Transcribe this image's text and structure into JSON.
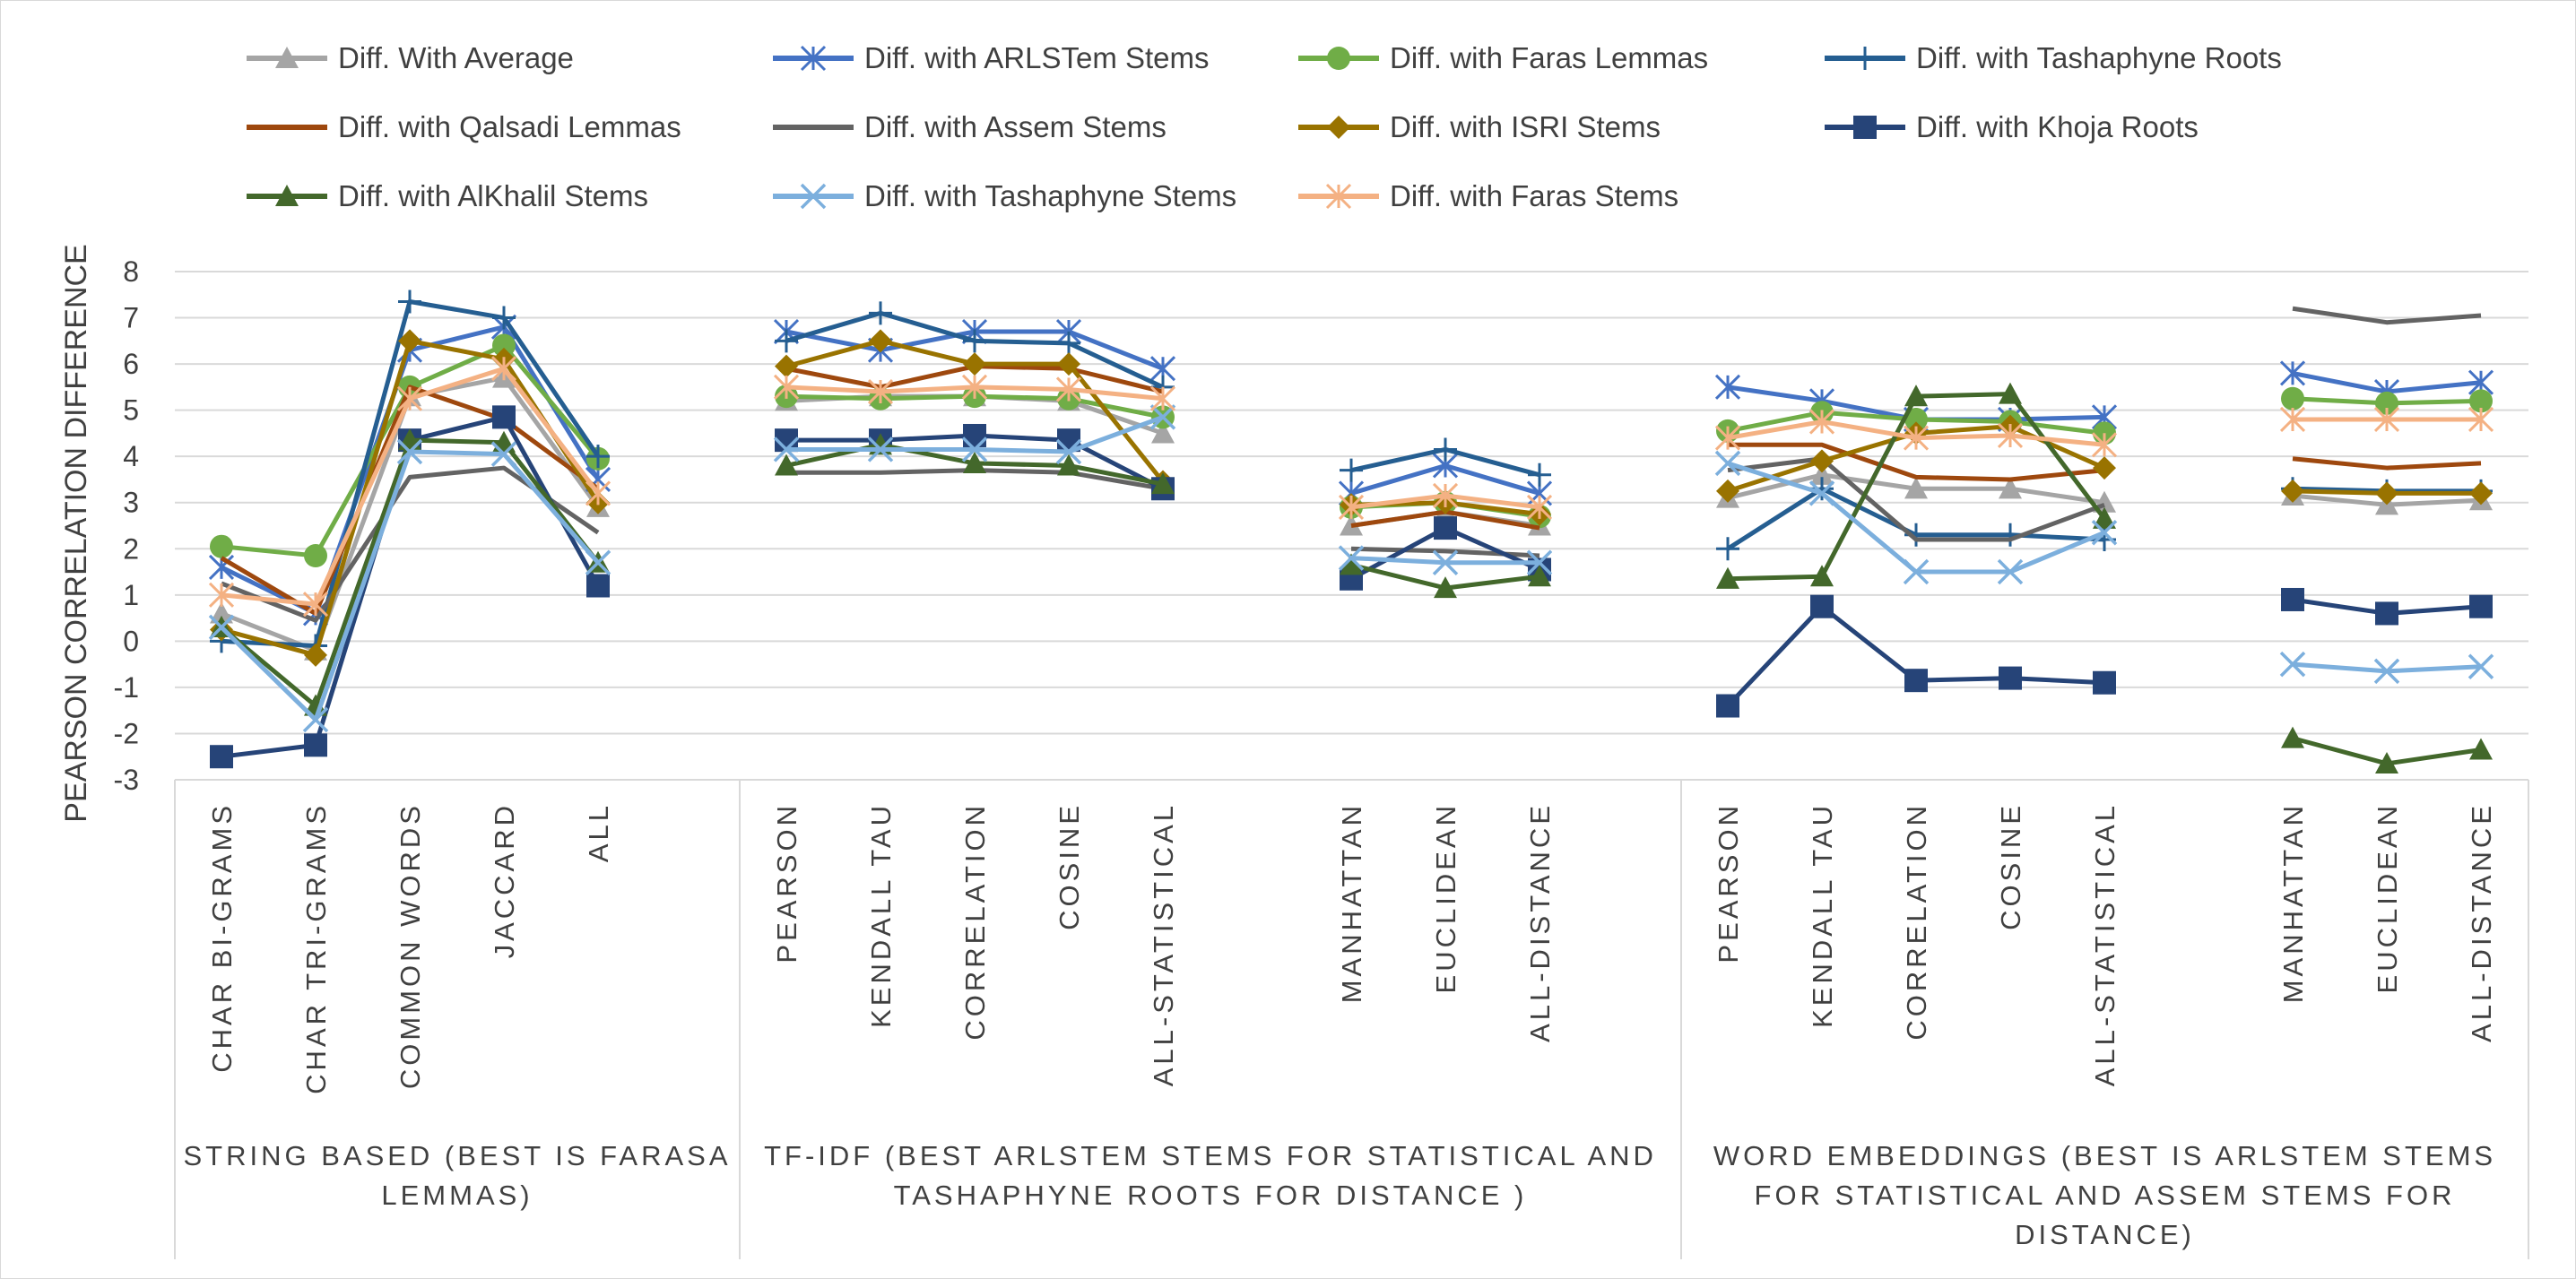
{
  "chart_data": {
    "type": "line",
    "ylabel": "PEARSON CORRELATION DIFFERENCE",
    "ylim": [
      -3,
      8
    ],
    "yticks": [
      "8",
      "7",
      "6",
      "5",
      "4",
      "3",
      "2",
      "1",
      "0",
      "-1",
      "-2",
      "-3"
    ],
    "grid": true,
    "legend": "top",
    "categories": [
      "CHAR BI-GRAMS",
      "CHAR TRI-GRAMS",
      "COMMON WORDS",
      "JACCARD",
      "ALL",
      "PEARSON",
      "KENDALL TAU",
      "CORRELATION",
      "COSINE",
      "ALL-STATISTICAL",
      "MANHATTAN",
      "EUCLIDEAN",
      "ALL-DISTANCE",
      "PEARSON",
      "KENDALL TAU",
      "CORRELATION",
      "COSINE",
      "ALL-STATISTICAL",
      "MANHATTAN",
      "EUCLIDEAN",
      "ALL-DISTANCE"
    ],
    "groups": [
      {
        "label_lines": [
          "STRING BASED (BEST IS FARASA",
          "LEMMAS)"
        ],
        "count": 5
      },
      {
        "label_lines": [
          "TF-IDF (BEST ARLSTEM STEMS FOR STATISTICAL AND",
          "TASHAPHYNE ROOTS FOR DISTANCE )"
        ],
        "count": 8
      },
      {
        "label_lines": [
          "WORD EMBEDDINGS (BEST IS ARLSTEM STEMS",
          "FOR STATISTICAL AND ASSEM STEMS FOR",
          "DISTANCE)"
        ],
        "count": 8
      }
    ],
    "segments": [
      [
        0,
        4
      ],
      [
        5,
        9
      ],
      [
        10,
        12
      ],
      [
        13,
        17
      ],
      [
        18,
        20
      ]
    ],
    "series": [
      {
        "name": "Diff. With Average",
        "color": "#a5a5a5",
        "marker": "triangle",
        "values": [
          0.6,
          -0.2,
          5.3,
          5.7,
          2.9,
          5.2,
          5.3,
          5.3,
          5.2,
          4.5,
          2.5,
          2.8,
          2.5,
          3.1,
          3.6,
          3.3,
          3.3,
          3.0,
          3.15,
          2.95,
          3.05
        ]
      },
      {
        "name": "Diff. with ARLSTem Stems",
        "color": "#4472c4",
        "marker": "star",
        "values": [
          1.6,
          0.6,
          6.3,
          6.8,
          3.5,
          6.7,
          6.3,
          6.7,
          6.7,
          5.9,
          3.2,
          3.8,
          3.2,
          5.5,
          5.2,
          4.8,
          4.8,
          4.85,
          5.8,
          5.4,
          5.6
        ]
      },
      {
        "name": "Diff. with Faras Lemmas",
        "color": "#70ad47",
        "marker": "circle",
        "values": [
          2.05,
          1.85,
          5.5,
          6.4,
          3.95,
          5.3,
          5.25,
          5.3,
          5.25,
          4.85,
          2.9,
          3.0,
          2.7,
          4.55,
          4.95,
          4.8,
          4.75,
          4.5,
          5.25,
          5.15,
          5.2
        ]
      },
      {
        "name": "Diff. with Tashaphyne Roots",
        "color": "#255e91",
        "marker": "plus",
        "values": [
          0.0,
          -0.1,
          7.35,
          7.0,
          4.0,
          6.5,
          7.1,
          6.5,
          6.45,
          5.5,
          3.7,
          4.15,
          3.6,
          2.0,
          3.3,
          2.3,
          2.3,
          2.2,
          3.3,
          3.25,
          3.25
        ]
      },
      {
        "name": "Diff. with Qalsadi Lemmas",
        "color": "#9e480e",
        "marker": "none",
        "values": [
          1.8,
          0.6,
          5.5,
          4.8,
          3.3,
          5.9,
          5.5,
          5.95,
          5.9,
          5.4,
          2.5,
          2.8,
          2.45,
          4.25,
          4.25,
          3.55,
          3.5,
          3.7,
          3.95,
          3.75,
          3.85
        ]
      },
      {
        "name": "Diff. with Assem Stems",
        "color": "#636363",
        "marker": "none",
        "values": [
          1.25,
          0.45,
          3.55,
          3.75,
          2.35,
          3.65,
          3.65,
          3.7,
          3.65,
          3.3,
          2.0,
          1.95,
          1.85,
          3.7,
          3.95,
          2.2,
          2.2,
          2.95,
          7.2,
          6.9,
          7.05
        ]
      },
      {
        "name": "Diff. with ISRI Stems",
        "color": "#997300",
        "marker": "diamond",
        "values": [
          0.25,
          -0.3,
          6.5,
          6.1,
          3.0,
          5.95,
          6.5,
          6.0,
          6.0,
          3.45,
          2.95,
          3.0,
          2.75,
          3.25,
          3.9,
          4.5,
          4.65,
          3.75,
          3.25,
          3.2,
          3.2
        ]
      },
      {
        "name": "Diff. with Khoja Roots",
        "color": "#264478",
        "marker": "square",
        "values": [
          -2.5,
          -2.25,
          4.35,
          4.85,
          1.2,
          4.35,
          4.35,
          4.45,
          4.35,
          3.3,
          1.35,
          2.45,
          1.55,
          -1.4,
          0.75,
          -0.85,
          -0.8,
          -0.9,
          0.9,
          0.6,
          0.75
        ]
      },
      {
        "name": "Diff. with AlKhalil Stems",
        "color": "#43682b",
        "marker": "triangle",
        "values": [
          0.3,
          -1.4,
          4.35,
          4.3,
          1.7,
          3.8,
          4.25,
          3.85,
          3.8,
          3.4,
          1.65,
          1.15,
          1.4,
          1.35,
          1.4,
          5.3,
          5.35,
          2.65,
          -2.1,
          -2.65,
          -2.35
        ]
      },
      {
        "name": "Diff. with Tashaphyne Stems",
        "color": "#7cafdd",
        "marker": "x",
        "values": [
          0.3,
          -1.7,
          4.1,
          4.05,
          1.7,
          4.15,
          4.15,
          4.15,
          4.1,
          4.85,
          1.8,
          1.7,
          1.7,
          3.85,
          3.2,
          1.5,
          1.5,
          2.35,
          -0.5,
          -0.65,
          -0.55
        ]
      },
      {
        "name": "Diff. with Faras Stems",
        "color": "#f4b183",
        "marker": "star",
        "values": [
          1.0,
          0.8,
          5.25,
          5.9,
          3.2,
          5.5,
          5.4,
          5.5,
          5.45,
          5.25,
          2.9,
          3.15,
          2.9,
          4.4,
          4.75,
          4.4,
          4.45,
          4.25,
          4.8,
          4.8,
          4.8
        ]
      }
    ]
  }
}
